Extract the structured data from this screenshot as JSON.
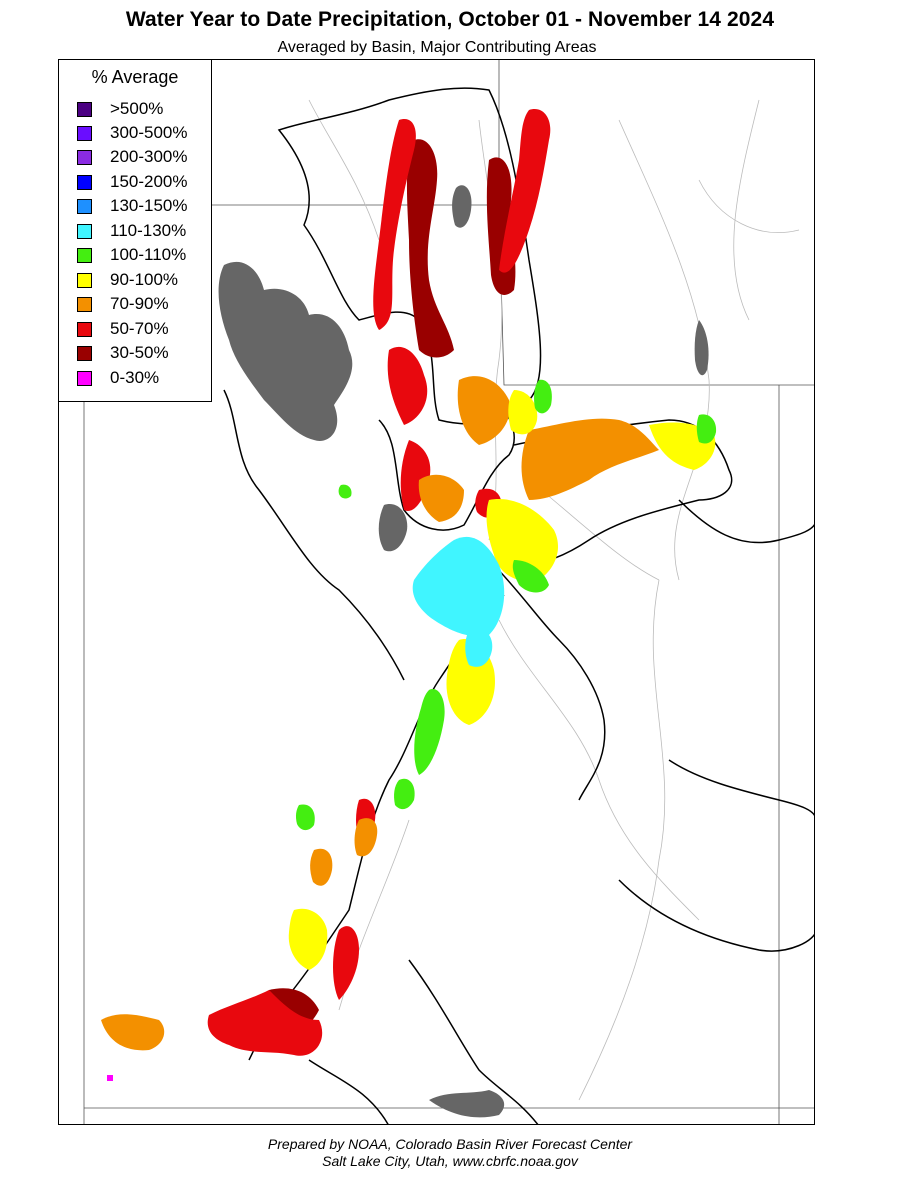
{
  "title": "Water Year to Date Precipitation, October 01  - November 14 2024",
  "subtitle": "Averaged by Basin, Major Contributing Areas",
  "legend": {
    "title": "% Average",
    "items": [
      {
        "label": ">500%",
        "color": "#4b0082"
      },
      {
        "label": "300-500%",
        "color": "#6a0dff"
      },
      {
        "label": "200-300%",
        "color": "#8a2be2"
      },
      {
        "label": "150-200%",
        "color": "#0000ff"
      },
      {
        "label": "130-150%",
        "color": "#1e90ff"
      },
      {
        "label": "110-130%",
        "color": "#40f5ff"
      },
      {
        "label": "100-110%",
        "color": "#44ee11"
      },
      {
        "label": "90-100%",
        "color": "#ffff00"
      },
      {
        "label": "70-90%",
        "color": "#f39000"
      },
      {
        "label": "50-70%",
        "color": "#e8080e"
      },
      {
        "label": "30-50%",
        "color": "#990000"
      },
      {
        "label": "0-30%",
        "color": "#ff00ff"
      }
    ]
  },
  "lake_color": "#666666",
  "credit_line1": "Prepared by NOAA, Colorado Basin River Forecast Center",
  "credit_line2": "Salt Lake City, Utah, www.cbrfc.noaa.gov"
}
